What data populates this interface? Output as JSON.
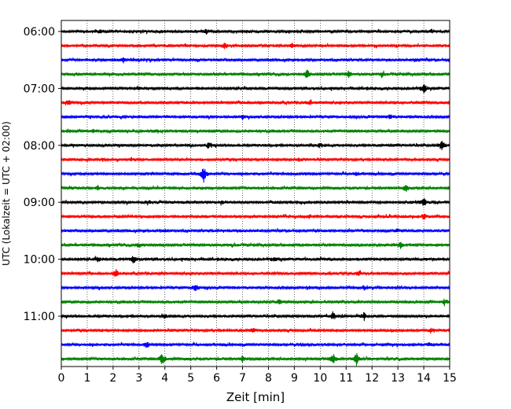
{
  "chart_data": {
    "type": "line",
    "title": "",
    "xlabel": "Zeit  [min]",
    "ylabel": "UTC (Lokalzeit = UTC + 02:00)",
    "xlim": [
      0,
      15
    ],
    "x_ticks": [
      0,
      1,
      2,
      3,
      4,
      5,
      6,
      7,
      8,
      9,
      10,
      11,
      12,
      13,
      14,
      15
    ],
    "x_tick_labels": [
      "0",
      "1",
      "2",
      "3",
      "4",
      "5",
      "6",
      "7",
      "8",
      "9",
      "10",
      "11",
      "12",
      "13",
      "14",
      "15"
    ],
    "y_tick_labels": [
      "06:00",
      "07:00",
      "08:00",
      "09:00",
      "10:00",
      "11:00"
    ],
    "y_tick_rows": [
      0,
      4,
      8,
      12,
      16,
      20
    ],
    "row_interval_minutes": 15,
    "rows": 24,
    "start_time": "06:00",
    "grid": "vertical dotted",
    "legend": "none",
    "trace_colors": [
      "#000000",
      "#ff0000",
      "#0000ff",
      "#008000"
    ],
    "traces_note_events": [
      {
        "row": 0,
        "events": [
          [
            1.5,
            0.4
          ],
          [
            5.6,
            0.5
          ],
          [
            14.3,
            0.3
          ]
        ]
      },
      {
        "row": 1,
        "events": [
          [
            6.3,
            0.7
          ],
          [
            8.9,
            0.6
          ]
        ]
      },
      {
        "row": 2,
        "events": [
          [
            2.4,
            0.4
          ],
          [
            13.7,
            0.3
          ]
        ]
      },
      {
        "row": 3,
        "events": [
          [
            9.5,
            0.9
          ],
          [
            11.1,
            0.7
          ],
          [
            12.4,
            0.4
          ]
        ]
      },
      {
        "row": 4,
        "events": [
          [
            14.0,
            1.0
          ],
          [
            3.0,
            0.3
          ]
        ]
      },
      {
        "row": 5,
        "events": [
          [
            0.3,
            0.4
          ],
          [
            9.6,
            0.4
          ]
        ]
      },
      {
        "row": 6,
        "events": [
          [
            7.0,
            0.5
          ],
          [
            12.7,
            0.4
          ]
        ]
      },
      {
        "row": 7,
        "events": [
          [
            3.6,
            0.4
          ],
          [
            1.2,
            0.3
          ]
        ]
      },
      {
        "row": 8,
        "events": [
          [
            14.7,
            1.0
          ],
          [
            5.7,
            0.6
          ],
          [
            10.0,
            0.5
          ]
        ]
      },
      {
        "row": 9,
        "events": [
          [
            2.7,
            0.3
          ],
          [
            9.2,
            0.3
          ]
        ]
      },
      {
        "row": 10,
        "events": [
          [
            5.5,
            1.6
          ],
          [
            11.4,
            0.3
          ]
        ]
      },
      {
        "row": 11,
        "events": [
          [
            13.3,
            0.8
          ],
          [
            1.4,
            0.3
          ]
        ]
      },
      {
        "row": 12,
        "events": [
          [
            14.0,
            0.8
          ],
          [
            6.2,
            0.3
          ],
          [
            3.4,
            0.3
          ]
        ]
      },
      {
        "row": 13,
        "events": [
          [
            14.0,
            0.6
          ],
          [
            9.6,
            0.4
          ]
        ]
      },
      {
        "row": 14,
        "events": [
          [
            13.0,
            0.3
          ],
          [
            4.0,
            0.3
          ]
        ]
      },
      {
        "row": 15,
        "events": [
          [
            13.1,
            0.7
          ],
          [
            3.0,
            0.4
          ]
        ]
      },
      {
        "row": 16,
        "events": [
          [
            2.8,
            0.9
          ],
          [
            1.4,
            0.5
          ],
          [
            8.2,
            0.4
          ]
        ]
      },
      {
        "row": 17,
        "events": [
          [
            2.1,
            0.8
          ],
          [
            11.5,
            0.4
          ]
        ]
      },
      {
        "row": 18,
        "events": [
          [
            5.2,
            0.7
          ],
          [
            11.7,
            0.4
          ]
        ]
      },
      {
        "row": 19,
        "events": [
          [
            14.8,
            0.6
          ],
          [
            8.4,
            0.4
          ]
        ]
      },
      {
        "row": 20,
        "events": [
          [
            10.5,
            0.9
          ],
          [
            11.7,
            0.8
          ],
          [
            4.0,
            0.4
          ]
        ]
      },
      {
        "row": 21,
        "events": [
          [
            7.4,
            0.4
          ],
          [
            14.3,
            0.4
          ]
        ]
      },
      {
        "row": 22,
        "events": [
          [
            3.3,
            0.5
          ],
          [
            14.2,
            0.3
          ]
        ]
      },
      {
        "row": 23,
        "events": [
          [
            3.9,
            1.2
          ],
          [
            10.5,
            1.0
          ],
          [
            11.4,
            1.2
          ],
          [
            7.0,
            0.6
          ]
        ]
      }
    ]
  }
}
